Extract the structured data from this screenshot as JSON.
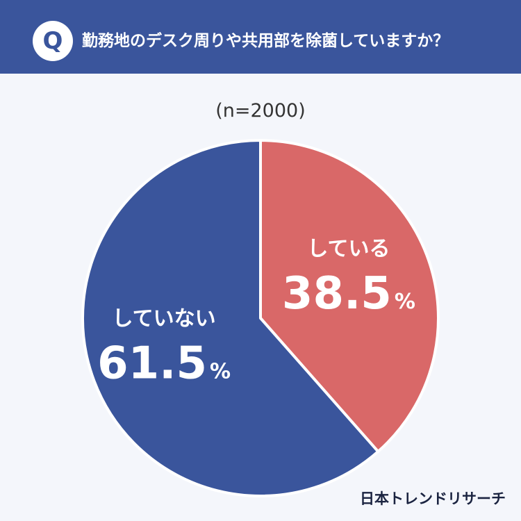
{
  "header": {
    "badge": "Q",
    "question": "勤務地のデスク周りや共用部を除菌していますか？"
  },
  "sample_label": "(n=2000)",
  "brand": "日本トレンドリサーチ",
  "colors": {
    "header_bg": "#3a559c",
    "slice_yes": "#d96868",
    "slice_no": "#3a559c",
    "page_bg": "#f4f6fb"
  },
  "chart_data": {
    "type": "pie",
    "title": "勤務地のデスク周りや共用部を除菌していますか？",
    "n": 2000,
    "start": "12 o'clock",
    "direction": "clockwise",
    "slices": [
      {
        "label": "している",
        "value": 38.5,
        "value_label": "38.5",
        "unit": "%",
        "color": "#d96868"
      },
      {
        "label": "していない",
        "value": 61.5,
        "value_label": "61.5",
        "unit": "%",
        "color": "#3a559c"
      }
    ]
  }
}
